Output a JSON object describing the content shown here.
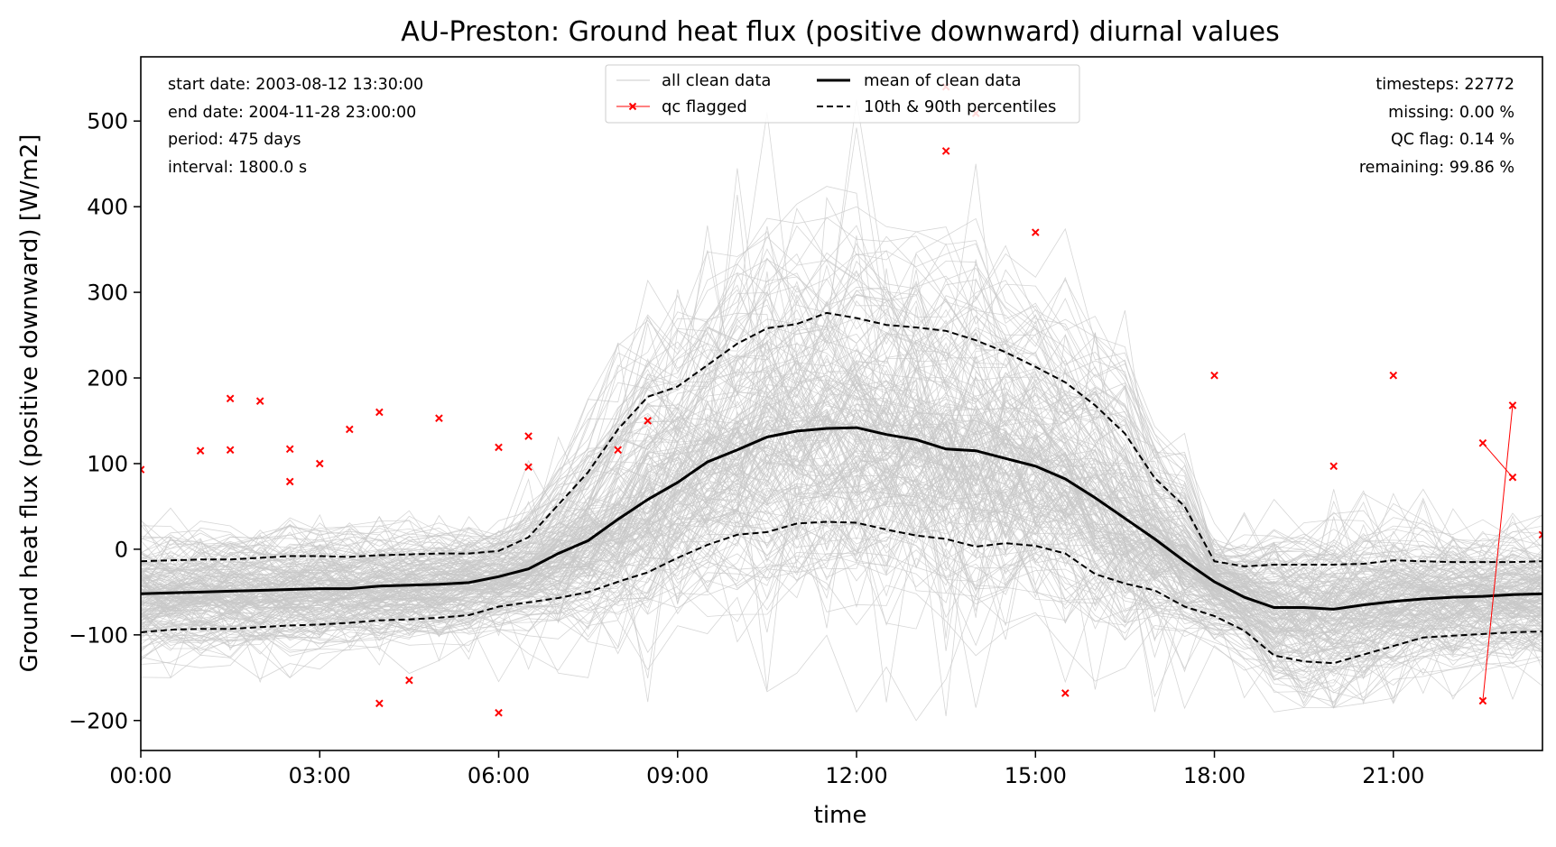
{
  "chart_data": {
    "type": "line",
    "title": "AU-Preston: Ground heat flux (positive downward) diurnal values",
    "xlabel": "time",
    "ylabel": "Ground heat flux (positive downward) [W/m2]",
    "xlim": [
      0,
      23.5
    ],
    "ylim": [
      -235,
      575
    ],
    "x_ticks": [
      0,
      3,
      6,
      9,
      12,
      15,
      18,
      21
    ],
    "x_tick_labels": [
      "00:00",
      "03:00",
      "06:00",
      "09:00",
      "12:00",
      "15:00",
      "18:00",
      "21:00"
    ],
    "y_ticks": [
      -200,
      -100,
      0,
      100,
      200,
      300,
      400,
      500
    ],
    "y_tick_labels": [
      "−200",
      "−100",
      "0",
      "100",
      "200",
      "300",
      "400",
      "500"
    ],
    "grid": false,
    "legend_placement": "top-center",
    "legend": [
      {
        "label": "all clean data",
        "style": "thin-gray-line"
      },
      {
        "label": "qc flagged",
        "style": "red-x-line"
      },
      {
        "label": "mean of clean data",
        "style": "thick-black-line"
      },
      {
        "label": "10th & 90th percentiles",
        "style": "black-dashed-line"
      }
    ],
    "info_left": [
      "start date: 2003-08-12 13:30:00",
      "end date: 2004-11-28 23:00:00",
      "period: 475 days",
      "interval: 1800.0 s"
    ],
    "info_right": [
      "timesteps: 22772",
      "missing: 0.00 %",
      "QC flag: 0.14 %",
      "remaining: 99.86 %"
    ],
    "x": [
      0,
      0.5,
      1,
      1.5,
      2,
      2.5,
      3,
      3.5,
      4,
      4.5,
      5,
      5.5,
      6,
      6.5,
      7,
      7.5,
      8,
      8.5,
      9,
      9.5,
      10,
      10.5,
      11,
      11.5,
      12,
      12.5,
      13,
      13.5,
      14,
      14.5,
      15,
      15.5,
      16,
      16.5,
      17,
      17.5,
      18,
      18.5,
      19,
      19.5,
      20,
      20.5,
      21,
      21.5,
      22,
      22.5,
      23,
      23.5
    ],
    "series": [
      {
        "name": "mean of clean data",
        "values": [
          -52,
          -51,
          -50,
          -49,
          -48,
          -47,
          -46,
          -46,
          -43,
          -42,
          -41,
          -39,
          -32,
          -23,
          -5,
          10,
          35,
          58,
          78,
          102,
          116,
          131,
          138,
          141,
          142,
          134,
          128,
          117,
          115,
          106,
          97,
          82,
          60,
          36,
          12,
          -14,
          -38,
          -56,
          -68,
          -68,
          -70,
          -65,
          -61,
          -58,
          -56,
          -55,
          -53,
          -52
        ]
      },
      {
        "name": "10th & 90th percentiles",
        "values": [
          -14,
          -13,
          -12,
          -12,
          -10,
          -8,
          -8,
          -9,
          -7,
          -6,
          -5,
          -5,
          -2,
          14,
          52,
          90,
          140,
          178,
          190,
          215,
          240,
          258,
          263,
          276,
          270,
          262,
          259,
          255,
          244,
          230,
          213,
          195,
          168,
          135,
          83,
          50,
          -14,
          -20,
          -18,
          -18,
          -18,
          -17,
          -13,
          -14,
          -15,
          -15,
          -15,
          -14
        ]
      },
      {
        "name": "10th & 90th percentiles",
        "values": [
          -97,
          -94,
          -93,
          -93,
          -91,
          -89,
          -88,
          -86,
          -83,
          -82,
          -80,
          -77,
          -67,
          -62,
          -57,
          -50,
          -38,
          -27,
          -10,
          5,
          17,
          20,
          30,
          32,
          31,
          23,
          16,
          12,
          3,
          7,
          4,
          -5,
          -29,
          -40,
          -48,
          -67,
          -78,
          -95,
          -124,
          -131,
          -133,
          -123,
          -113,
          -103,
          -101,
          -99,
          -97,
          -96
        ]
      },
      {
        "name": "qc flagged",
        "points": [
          [
            0,
            93
          ],
          [
            1,
            115
          ],
          [
            1.5,
            176
          ],
          [
            1.5,
            116
          ],
          [
            2,
            173
          ],
          [
            2.5,
            117
          ],
          [
            2.5,
            79
          ],
          [
            3,
            100
          ],
          [
            3.5,
            140
          ],
          [
            4,
            160
          ],
          [
            4,
            -180
          ],
          [
            4.5,
            -153
          ],
          [
            5,
            153
          ],
          [
            6,
            119
          ],
          [
            6,
            -191
          ],
          [
            6.5,
            132
          ],
          [
            6.5,
            96
          ],
          [
            8,
            116
          ],
          [
            8.5,
            150
          ],
          [
            13.5,
            540
          ],
          [
            13.5,
            465
          ],
          [
            14,
            509
          ],
          [
            15,
            370
          ],
          [
            15.5,
            -168
          ],
          [
            18,
            203
          ],
          [
            20,
            97
          ],
          [
            21,
            203
          ],
          [
            22.5,
            124
          ],
          [
            22.5,
            -177
          ],
          [
            23,
            168
          ],
          [
            23,
            84
          ],
          [
            23.5,
            17
          ]
        ]
      }
    ],
    "band_upper": [
      35,
      48,
      75,
      85,
      50,
      45,
      40,
      42,
      38,
      45,
      60,
      100,
      200,
      290,
      340,
      380,
      420,
      440,
      470,
      490,
      500,
      510,
      520,
      525,
      525,
      520,
      525,
      510,
      480,
      470,
      460,
      420,
      390,
      350,
      280,
      180,
      110,
      110,
      95,
      70,
      70,
      68,
      65,
      70,
      55,
      55,
      42,
      40
    ],
    "band_lower": [
      -165,
      -150,
      -155,
      -150,
      -155,
      -150,
      -140,
      -140,
      -135,
      -145,
      -130,
      -130,
      -160,
      -140,
      -150,
      -150,
      -150,
      -180,
      -190,
      -190,
      -195,
      -195,
      -190,
      -180,
      -190,
      -190,
      -200,
      -195,
      -185,
      -165,
      -160,
      -155,
      -170,
      -180,
      -190,
      -195,
      -195,
      -195,
      -190,
      -185,
      -185,
      -180,
      -180,
      -170,
      -175,
      -180,
      -175,
      -170
    ]
  },
  "colors": {
    "clean_data": "#c8c8c8",
    "qc_flagged": "#ff0000",
    "mean": "#000000",
    "percentiles": "#000000"
  }
}
